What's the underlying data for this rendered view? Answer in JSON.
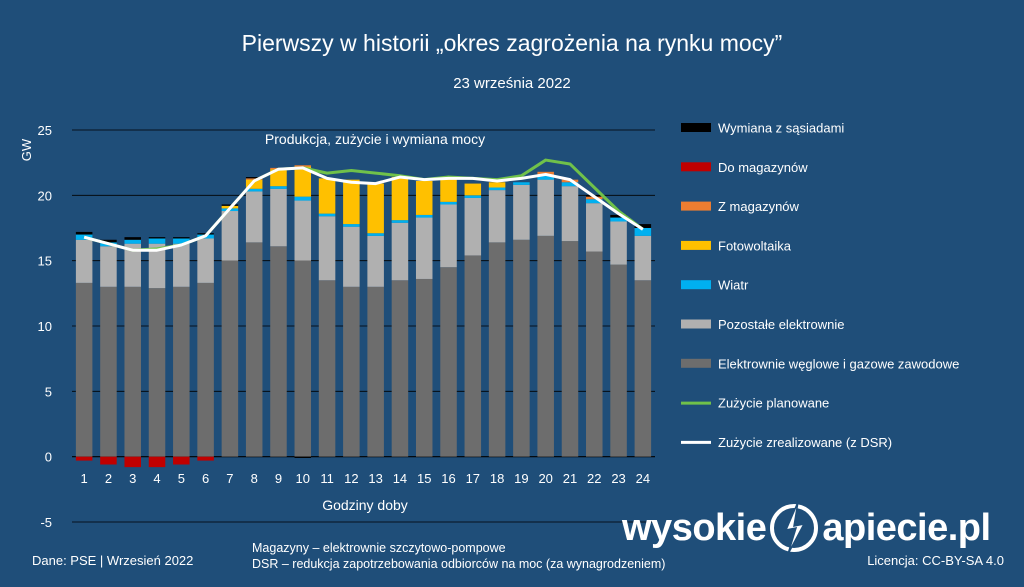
{
  "title": "Pierwszy w historii „okres zagrożenia na rynku mocy”",
  "subtitle": "23 września 2022",
  "footer": {
    "source": "Dane: PSE  |  Wrzesień 2022",
    "note1": "Magazyny – elektrownie szczytowo-pompowe",
    "note2": "DSR – redukcja zapotrzebowania odbiorców na moc (za wynagrodzeniem)",
    "license": "Licencja: CC-BY-SA 4.0",
    "brand_left": "wysokie",
    "brand_right": "apiecie.pl"
  },
  "chart_data": {
    "type": "bar",
    "title": "Produkcja, zużycie i wymiana mocy",
    "xlabel": "Godziny doby",
    "ylabel": "GW",
    "ylim": [
      -5,
      25
    ],
    "yticks": [
      -5,
      0,
      5,
      10,
      15,
      20,
      25
    ],
    "grid": true,
    "legend_position": "right",
    "categories": [
      "1",
      "2",
      "3",
      "4",
      "5",
      "6",
      "7",
      "8",
      "9",
      "10",
      "11",
      "12",
      "13",
      "14",
      "15",
      "16",
      "17",
      "18",
      "19",
      "20",
      "21",
      "22",
      "23",
      "24"
    ],
    "series": [
      {
        "name": "Elektrownie węglowe i gazowe zawodowe",
        "kind": "bar",
        "color": "#6d6d6d",
        "values": [
          13.3,
          13.0,
          13.0,
          12.9,
          13.0,
          13.3,
          15.0,
          16.4,
          16.1,
          15.0,
          13.5,
          13.0,
          13.0,
          13.5,
          13.6,
          14.5,
          15.4,
          16.4,
          16.6,
          16.9,
          16.5,
          15.7,
          14.7,
          13.5
        ]
      },
      {
        "name": "Pozostałe elektrownie",
        "kind": "bar",
        "color": "#b0b0b0",
        "values": [
          3.3,
          3.1,
          3.3,
          3.4,
          3.3,
          3.4,
          3.8,
          3.9,
          4.4,
          4.6,
          4.9,
          4.6,
          3.9,
          4.4,
          4.7,
          4.8,
          4.4,
          4.0,
          4.2,
          4.3,
          4.2,
          3.7,
          3.3,
          3.4
        ]
      },
      {
        "name": "Wiatr",
        "kind": "bar",
        "color": "#00b0f0",
        "values": [
          0.4,
          0.3,
          0.3,
          0.4,
          0.4,
          0.3,
          0.2,
          0.2,
          0.2,
          0.3,
          0.2,
          0.2,
          0.2,
          0.2,
          0.2,
          0.2,
          0.2,
          0.2,
          0.2,
          0.3,
          0.3,
          0.3,
          0.3,
          0.6
        ]
      },
      {
        "name": "Fotowoltaika",
        "kind": "bar",
        "color": "#ffc000",
        "values": [
          0,
          0,
          0,
          0,
          0,
          0,
          0.2,
          0.7,
          1.3,
          2.3,
          2.7,
          3.4,
          3.8,
          3.3,
          2.6,
          1.8,
          0.9,
          0.4,
          0,
          0,
          0,
          0,
          0,
          0
        ]
      },
      {
        "name": "Z magazynów",
        "kind": "bar",
        "color": "#ed7d31",
        "values": [
          0,
          0,
          0,
          0,
          0,
          0,
          0,
          0.1,
          0.1,
          0.1,
          0,
          0,
          0,
          0,
          0,
          0,
          0,
          0,
          0,
          0.3,
          0.2,
          0.2,
          0,
          0
        ]
      },
      {
        "name": "Do magazynów",
        "kind": "bar",
        "color": "#c00000",
        "values": [
          -0.3,
          -0.6,
          -0.8,
          -0.8,
          -0.6,
          -0.3,
          0,
          0,
          0,
          0,
          0,
          0,
          0,
          0,
          0,
          0,
          0,
          0,
          0,
          0,
          0,
          0,
          0,
          0
        ]
      },
      {
        "name": "Wymiana z sąsiadami",
        "kind": "bar",
        "color": "#000000",
        "values": [
          0.2,
          0.2,
          0.2,
          0.1,
          0.1,
          0.1,
          0.1,
          0.1,
          0,
          -0.1,
          0,
          0,
          0,
          0,
          0,
          0,
          0,
          0,
          0,
          0,
          0,
          0.1,
          0.2,
          0.3
        ]
      },
      {
        "name": "Zużycie planowane",
        "kind": "line",
        "color": "#70c14a",
        "values": [
          16.8,
          16.3,
          15.8,
          15.9,
          16.2,
          16.9,
          19.0,
          21.1,
          22.0,
          22.1,
          21.7,
          21.9,
          21.7,
          21.5,
          21.2,
          21.4,
          21.3,
          21.2,
          21.5,
          22.7,
          22.4,
          20.6,
          18.8,
          17.4
        ]
      },
      {
        "name": "Zużycie zrealizowane (z DSR)",
        "kind": "line",
        "color": "#ffffff",
        "values": [
          16.8,
          16.3,
          15.8,
          15.8,
          16.2,
          16.9,
          19.0,
          21.1,
          22.0,
          22.1,
          21.3,
          21.0,
          20.9,
          21.4,
          21.2,
          21.3,
          21.3,
          21.1,
          21.3,
          21.6,
          21.2,
          19.9,
          18.6,
          17.4
        ]
      }
    ],
    "legend_order": [
      "Wymiana z sąsiadami",
      "Do magazynów",
      "Z magazynów",
      "Fotowoltaika",
      "Wiatr",
      "Pozostałe elektrownie",
      "Elektrownie węglowe i gazowe zawodowe",
      "Zużycie planowane",
      "Zużycie zrealizowane (z DSR)"
    ]
  }
}
